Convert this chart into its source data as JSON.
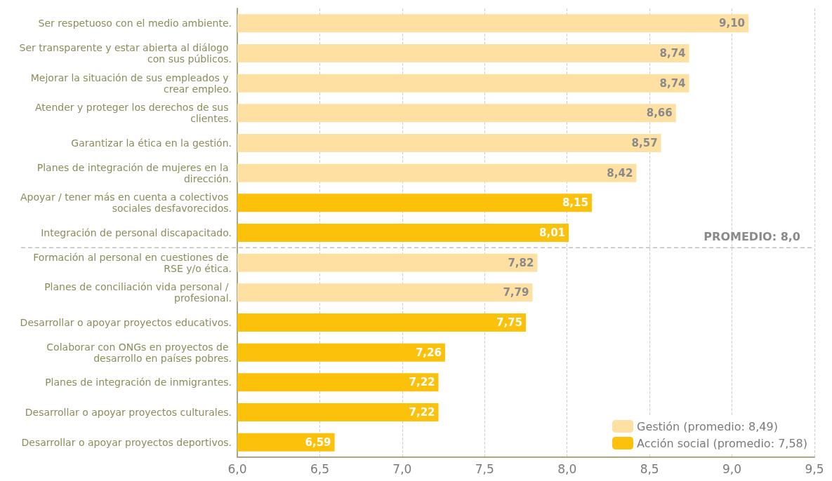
{
  "chart_data": {
    "type": "bar",
    "orientation": "horizontal",
    "categories": [
      "Ser respetuoso con el medio ambiente.",
      "Ser transparente y estar abierta al diálogo con sus públicos.",
      "Mejorar la situación de sus empleados y crear empleo.",
      "Atender y proteger los derechos de sus clientes.",
      "Garantizar la ética en la gestión.",
      "Planes de integración de mujeres en la dirección.",
      "Apoyar / tener más en cuenta a colectivos sociales desfavorecidos.",
      "Integración de personal discapacitado.",
      "Formación al personal en cuestiones de RSE y/o ética.",
      "Planes de conciliación vida personal / profesional.",
      "Desarrollar o apoyar proyectos educativos.",
      "Colaborar con ONGs en proyectos de desarrollo en países pobres.",
      "Planes de integración de inmigrantes.",
      "Desarrollar o apoyar proyectos culturales.",
      "Desarrollar o apoyar proyectos deportivos."
    ],
    "series": [
      {
        "name": "Gestión (promedio: 8,49)",
        "color": "#fde0a2",
        "values": [
          9.1,
          8.74,
          8.74,
          8.66,
          8.57,
          8.42,
          null,
          null,
          7.82,
          7.79,
          null,
          null,
          null,
          null,
          null
        ],
        "value_labels": [
          "9,10",
          "8,74",
          "8,74",
          "8,66",
          "8,57",
          "8,42",
          null,
          null,
          "7,82",
          "7,79",
          null,
          null,
          null,
          null,
          null
        ]
      },
      {
        "name": "Acción social (promedio: 7,58)",
        "color": "#fcc10a",
        "values": [
          null,
          null,
          null,
          null,
          null,
          null,
          8.15,
          8.01,
          null,
          null,
          7.75,
          7.26,
          7.22,
          7.22,
          6.59
        ],
        "value_labels": [
          null,
          null,
          null,
          null,
          null,
          null,
          "8,15",
          "8,01",
          null,
          null,
          "7,75",
          "7,26",
          "7,22",
          "7,22",
          "6,59"
        ]
      }
    ],
    "xlim": [
      6,
      9.5
    ],
    "xticks": [
      {
        "value": 6,
        "label": "6,0"
      },
      {
        "value": 6.5,
        "label": "6,5"
      },
      {
        "value": 7,
        "label": "7,0"
      },
      {
        "value": 7.5,
        "label": "7,5"
      },
      {
        "value": 8,
        "label": "8,0"
      },
      {
        "value": 8.5,
        "label": "8,5"
      },
      {
        "value": 9,
        "label": "9,0"
      },
      {
        "value": 9.5,
        "label": "9,5"
      }
    ],
    "grid": "x",
    "legend": "bottom right",
    "ref_lines": [
      {
        "axis": "y",
        "value": "Integración de personal discapacitado.",
        "label": "PROMEDIO: 8,0",
        "color": "#bdbdbd",
        "line_style": "dashed"
      }
    ]
  }
}
